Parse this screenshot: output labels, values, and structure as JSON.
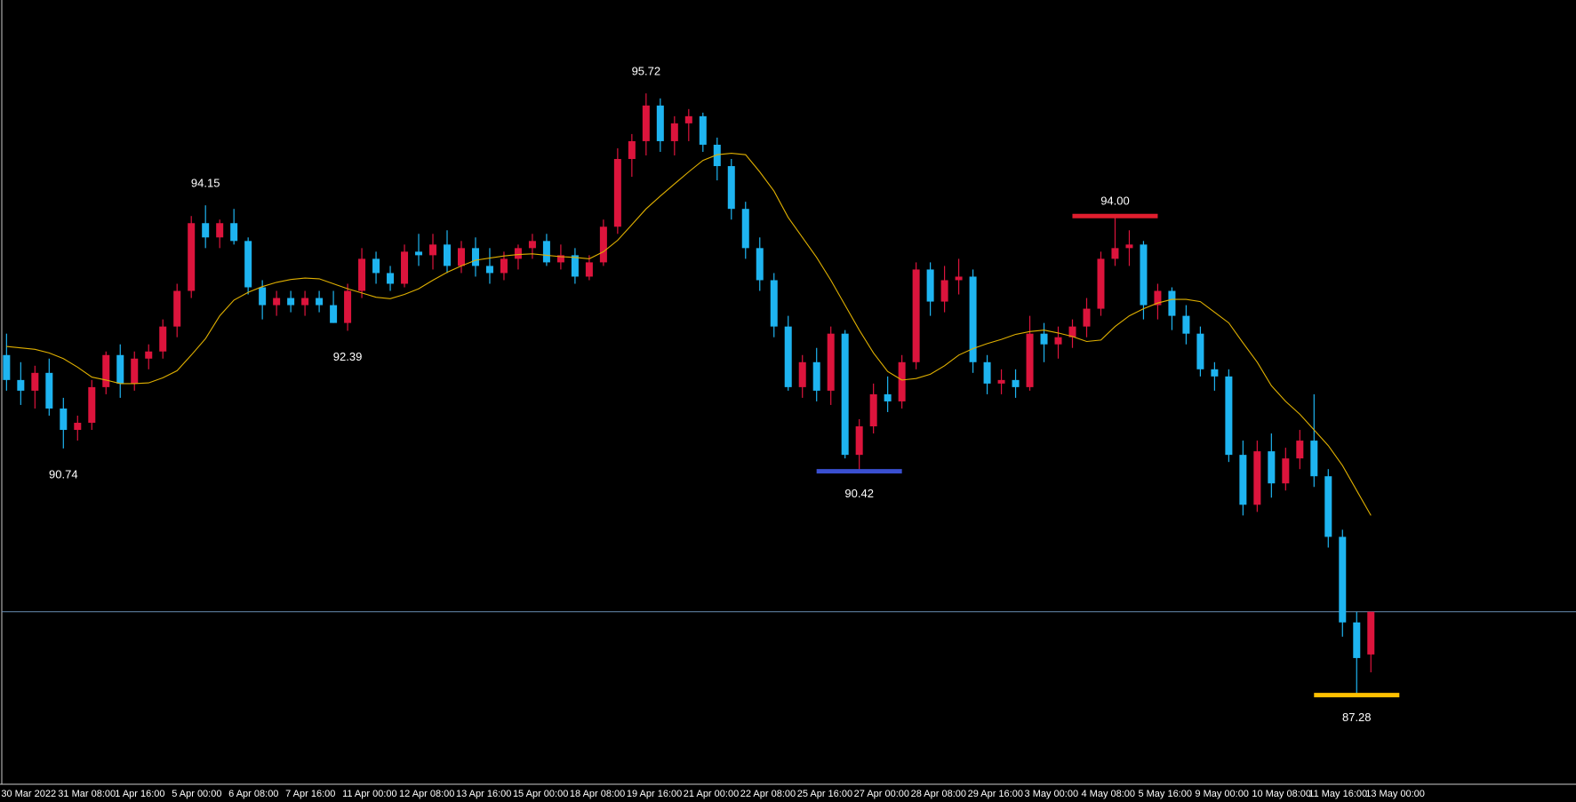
{
  "chart_data": {
    "type": "candlestick",
    "categories": [
      "30 Mar 2022",
      null,
      null,
      null,
      "31 Mar 08:00",
      null,
      null,
      null,
      "1 Apr 16:00",
      null,
      null,
      null,
      "5 Apr 00:00",
      null,
      null,
      null,
      "6 Apr 08:00",
      null,
      null,
      null,
      "7 Apr 16:00",
      null,
      null,
      null,
      "11 Apr 00:00",
      null,
      null,
      null,
      "12 Apr 08:00",
      null,
      null,
      null,
      "13 Apr 16:00",
      null,
      null,
      null,
      "15 Apr 00:00",
      null,
      null,
      null,
      "18 Apr 08:00",
      null,
      null,
      null,
      "19 Apr 16:00",
      null,
      null,
      null,
      "21 Apr 00:00",
      null,
      null,
      null,
      "22 Apr 08:00",
      null,
      null,
      null,
      "25 Apr 16:00",
      null,
      null,
      null,
      "27 Apr 00:00",
      null,
      null,
      null,
      "28 Apr 08:00",
      null,
      null,
      null,
      "29 Apr 16:00",
      null,
      null,
      null,
      "3 May 00:00",
      null,
      null,
      null,
      "4 May 08:00",
      null,
      null,
      null,
      "5 May 16:00",
      null,
      null,
      null,
      "9 May 00:00",
      null,
      null,
      null,
      "10 May 08:00",
      null,
      null,
      null,
      "11 May 16:00",
      null,
      null,
      null,
      "13 May 00:00"
    ],
    "open": [
      92.05,
      91.7,
      91.55,
      91.8,
      91.3,
      91.0,
      91.1,
      91.6,
      92.05,
      91.65,
      92.0,
      92.1,
      92.45,
      92.95,
      93.9,
      93.7,
      93.9,
      93.65,
      93.0,
      92.75,
      92.85,
      92.75,
      92.85,
      92.75,
      92.5,
      92.95,
      93.4,
      93.2,
      93.05,
      93.5,
      93.45,
      93.6,
      93.3,
      93.55,
      93.3,
      93.2,
      93.4,
      93.55,
      93.65,
      93.35,
      93.45,
      93.15,
      93.35,
      93.85,
      94.8,
      95.05,
      95.55,
      95.05,
      95.3,
      95.4,
      95.0,
      94.7,
      94.1,
      93.55,
      93.1,
      92.45,
      91.6,
      91.95,
      91.55,
      92.35,
      90.65,
      91.05,
      91.5,
      91.4,
      91.95,
      93.25,
      92.8,
      93.1,
      93.15,
      91.95,
      91.65,
      91.7,
      91.6,
      92.35,
      92.2,
      92.3,
      92.45,
      92.7,
      93.4,
      93.55,
      93.6,
      92.75,
      92.95,
      92.6,
      92.35,
      91.85,
      91.75,
      90.65,
      89.95,
      90.7,
      90.25,
      90.6,
      90.85,
      90.35,
      89.5,
      88.3,
      87.85
    ],
    "high": [
      92.35,
      91.95,
      91.9,
      92.0,
      91.45,
      91.2,
      91.7,
      92.1,
      92.2,
      92.1,
      92.2,
      92.55,
      93.05,
      94.0,
      94.15,
      93.95,
      94.1,
      93.7,
      93.1,
      92.95,
      92.95,
      92.95,
      92.95,
      92.95,
      93.05,
      93.55,
      93.5,
      93.3,
      93.6,
      93.75,
      93.75,
      93.8,
      93.65,
      93.7,
      93.55,
      93.5,
      93.6,
      93.75,
      93.75,
      93.6,
      93.55,
      93.45,
      93.95,
      94.95,
      95.15,
      95.72,
      95.65,
      95.4,
      95.5,
      95.45,
      95.1,
      94.8,
      94.2,
      93.7,
      93.2,
      92.6,
      92.05,
      92.15,
      92.45,
      92.4,
      91.15,
      91.65,
      91.75,
      92.05,
      93.35,
      93.35,
      93.3,
      93.4,
      93.25,
      92.05,
      91.85,
      91.85,
      92.6,
      92.5,
      92.45,
      92.55,
      92.85,
      93.5,
      94.0,
      93.8,
      93.65,
      93.05,
      93.0,
      92.75,
      92.45,
      91.95,
      91.85,
      90.85,
      90.85,
      90.95,
      90.75,
      91.0,
      91.5,
      90.45,
      89.6,
      88.45,
      88.45
    ],
    "low": [
      91.55,
      91.35,
      91.3,
      91.2,
      90.74,
      90.85,
      91.0,
      91.5,
      91.45,
      91.55,
      91.85,
      92.0,
      92.3,
      92.85,
      93.55,
      93.55,
      93.6,
      92.9,
      92.55,
      92.6,
      92.65,
      92.6,
      92.65,
      92.5,
      92.39,
      92.85,
      93.05,
      92.95,
      93.0,
      93.3,
      93.25,
      93.2,
      93.2,
      93.15,
      93.05,
      93.1,
      93.25,
      93.4,
      93.3,
      93.25,
      93.05,
      93.1,
      93.3,
      93.75,
      94.55,
      94.85,
      94.9,
      94.85,
      95.05,
      94.9,
      94.5,
      93.95,
      93.4,
      92.95,
      92.3,
      91.55,
      91.45,
      91.4,
      91.35,
      90.6,
      90.42,
      90.95,
      91.25,
      91.3,
      91.85,
      92.6,
      92.65,
      92.9,
      91.8,
      91.5,
      91.5,
      91.45,
      91.55,
      91.95,
      92.0,
      92.15,
      92.3,
      92.6,
      93.3,
      93.3,
      92.55,
      92.55,
      92.4,
      92.2,
      91.75,
      91.55,
      90.55,
      89.8,
      89.85,
      90.05,
      90.15,
      90.45,
      90.2,
      89.35,
      88.1,
      87.28,
      87.6
    ],
    "close": [
      91.7,
      91.55,
      91.8,
      91.3,
      91.0,
      91.1,
      91.6,
      92.05,
      91.65,
      92.0,
      92.1,
      92.45,
      92.95,
      93.9,
      93.7,
      93.9,
      93.65,
      93.0,
      92.75,
      92.85,
      92.75,
      92.85,
      92.75,
      92.5,
      92.95,
      93.4,
      93.2,
      93.05,
      93.5,
      93.45,
      93.6,
      93.3,
      93.55,
      93.3,
      93.2,
      93.4,
      93.55,
      93.65,
      93.35,
      93.45,
      93.15,
      93.35,
      93.85,
      94.8,
      95.05,
      95.55,
      95.05,
      95.3,
      95.4,
      95.0,
      94.7,
      94.1,
      93.55,
      93.1,
      92.45,
      91.6,
      91.95,
      91.55,
      92.35,
      90.65,
      91.05,
      91.5,
      91.4,
      91.95,
      93.25,
      92.8,
      93.1,
      93.15,
      91.95,
      91.65,
      91.7,
      91.6,
      92.35,
      92.2,
      92.3,
      92.45,
      92.7,
      93.4,
      93.55,
      93.6,
      92.75,
      92.95,
      92.6,
      92.35,
      91.85,
      91.75,
      90.65,
      89.95,
      90.7,
      90.25,
      90.6,
      90.85,
      90.35,
      89.5,
      88.3,
      87.8,
      88.45
    ],
    "up_color": "#dc143c",
    "down_color": "#1eb4f0",
    "ma": {
      "color": "#e0b000",
      "values": [
        92.17,
        92.15,
        92.13,
        92.08,
        92.0,
        91.88,
        91.74,
        91.7,
        91.65,
        91.65,
        91.66,
        91.73,
        91.83,
        92.05,
        92.28,
        92.6,
        92.82,
        92.93,
        93.01,
        93.07,
        93.11,
        93.13,
        93.12,
        93.05,
        92.98,
        92.92,
        92.86,
        92.84,
        92.9,
        92.98,
        93.1,
        93.21,
        93.3,
        93.38,
        93.41,
        93.44,
        93.46,
        93.47,
        93.45,
        93.43,
        93.42,
        93.4,
        93.5,
        93.66,
        93.88,
        94.1,
        94.28,
        94.45,
        94.62,
        94.78,
        94.86,
        94.88,
        94.86,
        94.62,
        94.35,
        93.98,
        93.7,
        93.42,
        93.1,
        92.75,
        92.4,
        92.08,
        91.82,
        91.7,
        91.72,
        91.78,
        91.9,
        92.05,
        92.14,
        92.21,
        92.27,
        92.34,
        92.38,
        92.4,
        92.36,
        92.31,
        92.24,
        92.26,
        92.45,
        92.6,
        92.7,
        92.78,
        92.83,
        92.83,
        92.8,
        92.65,
        92.5,
        92.22,
        91.95,
        91.62,
        91.4,
        91.22,
        91.0,
        90.78,
        90.5,
        90.15,
        89.8
      ]
    },
    "annotations": [
      {
        "value": 90.74,
        "label": "90.74",
        "index": 4,
        "position": "below"
      },
      {
        "value": 94.15,
        "label": "94.15",
        "index": 14,
        "position": "above"
      },
      {
        "value": 92.39,
        "label": "92.39",
        "index": 24,
        "position": "below"
      },
      {
        "value": 95.72,
        "label": "95.72",
        "index": 45,
        "position": "above"
      },
      {
        "value": 90.42,
        "label": "90.42",
        "index": 60,
        "position": "below",
        "line_color": "#3a4fd0"
      },
      {
        "value": 94,
        "label": "94.00",
        "index": 78,
        "position": "above",
        "line_color": "#e01e2e"
      },
      {
        "value": 87.28,
        "label": "87.28",
        "index": 95,
        "position": "below",
        "line_color": "#ffc000"
      }
    ],
    "price_line": {
      "value": 88.45,
      "color": "#6b8fb5"
    },
    "ylim": [
      86.03,
      97.03
    ]
  }
}
